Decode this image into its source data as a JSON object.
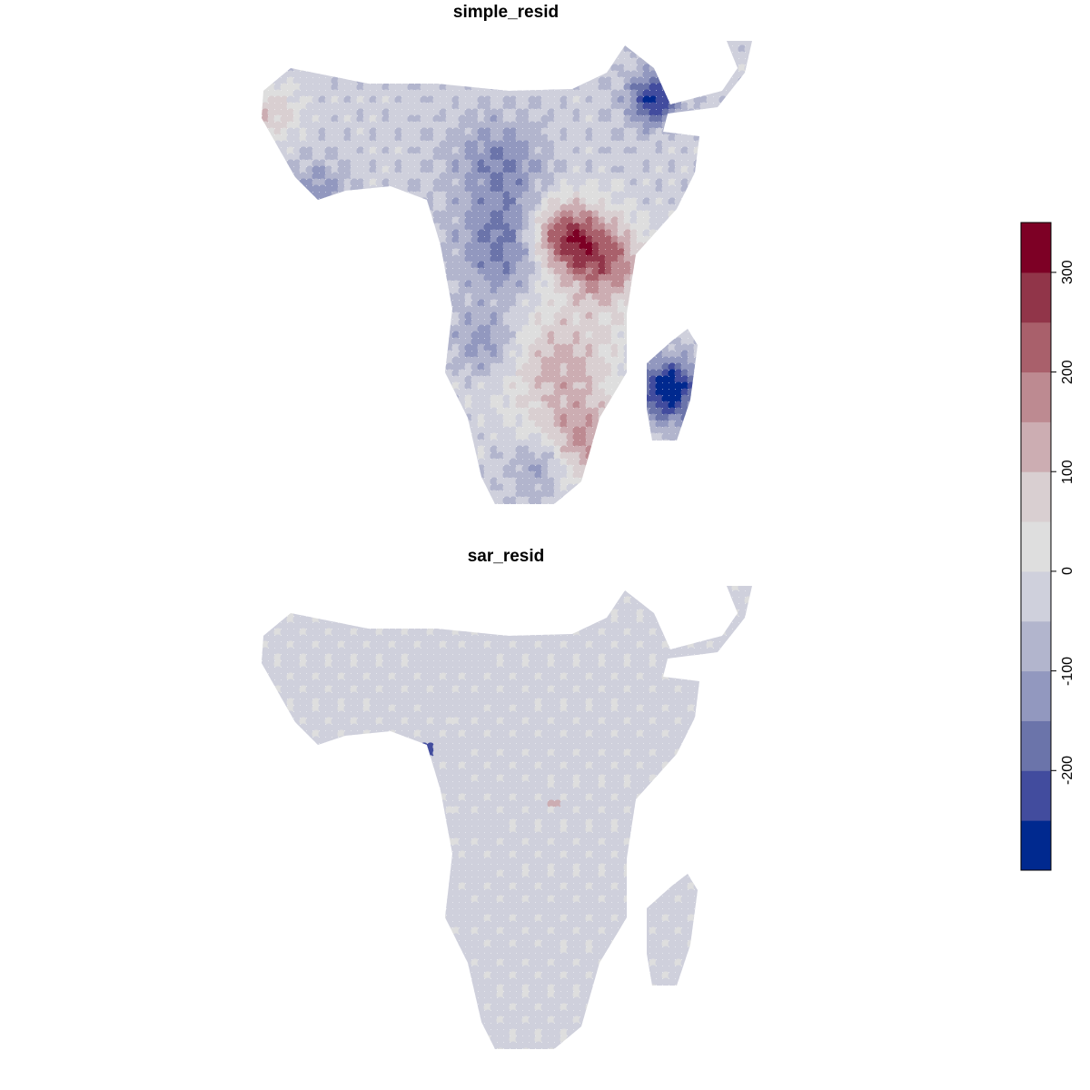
{
  "panels": [
    {
      "title": "simple_resid",
      "variable": "simple_resid"
    },
    {
      "title": "sar_resid",
      "variable": "sar_resid"
    }
  ],
  "legend": {
    "breaks": [
      -300,
      -250,
      -200,
      -150,
      -100,
      -50,
      0,
      50,
      100,
      150,
      200,
      250,
      300,
      350
    ],
    "tick_labels": [
      "-200",
      "-100",
      "0",
      "100",
      "200",
      "300"
    ],
    "tick_values": [
      -200,
      -100,
      0,
      100,
      200,
      300
    ],
    "colors": [
      "#00298f",
      "#424c9e",
      "#6b74aa",
      "#9298bf",
      "#b2b5cd",
      "#cfd0dc",
      "#dedede",
      "#d9cfd1",
      "#ccadb2",
      "#bd8a91",
      "#a9606b",
      "#913549",
      "#7d0025"
    ]
  },
  "colors": {
    "background": "#ffffff",
    "neutral": "#dedede",
    "grid_dot": "#f4f4f4"
  }
}
